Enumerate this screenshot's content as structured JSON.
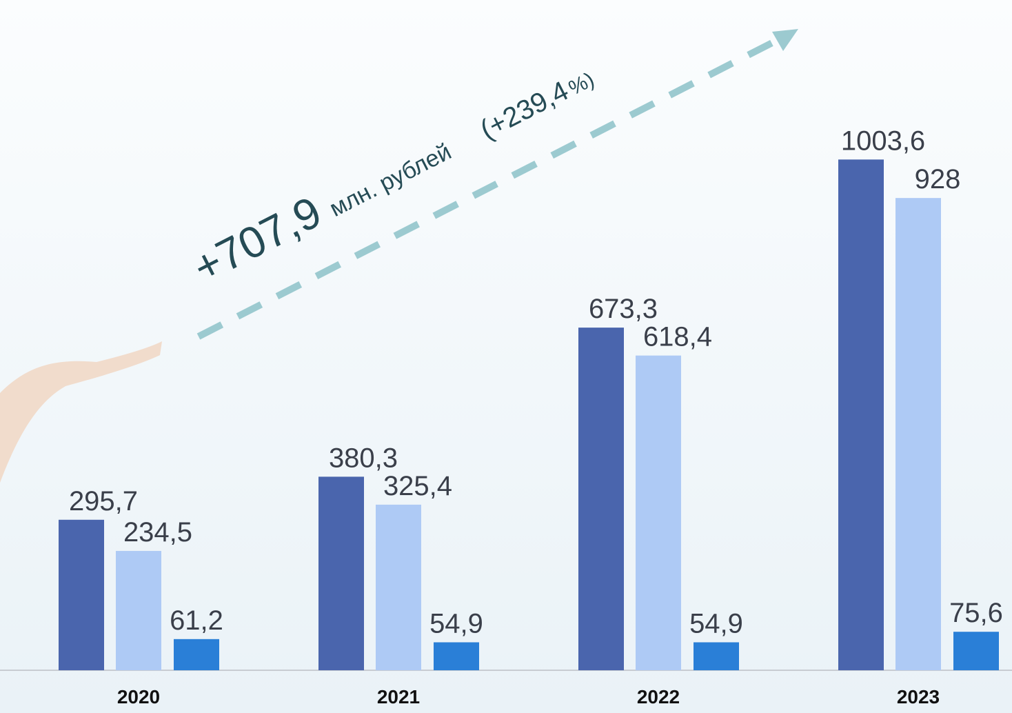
{
  "chart_data": {
    "type": "bar",
    "categories": [
      "2020",
      "2021",
      "2022",
      "2023"
    ],
    "series": [
      {
        "color": "#4a65ad",
        "values": [
          295.7,
          380.3,
          673.3,
          1003.6
        ],
        "value_labels": [
          "295,7",
          "380,3",
          "673,3",
          "1003,6"
        ]
      },
      {
        "color": "#aecaf5",
        "values": [
          234.5,
          325.4,
          618.4,
          928
        ],
        "value_labels": [
          "234,5",
          "325,4",
          "618,4",
          "928"
        ]
      },
      {
        "color": "#2a7fd7",
        "values": [
          61.2,
          54.9,
          54.9,
          75.6
        ],
        "value_labels": [
          "61,2",
          "54,9",
          "54,9",
          "75,6"
        ]
      }
    ],
    "annotation": [
      "+707,9",
      "млн. рублей",
      "(+239,4",
      "%)"
    ]
  }
}
